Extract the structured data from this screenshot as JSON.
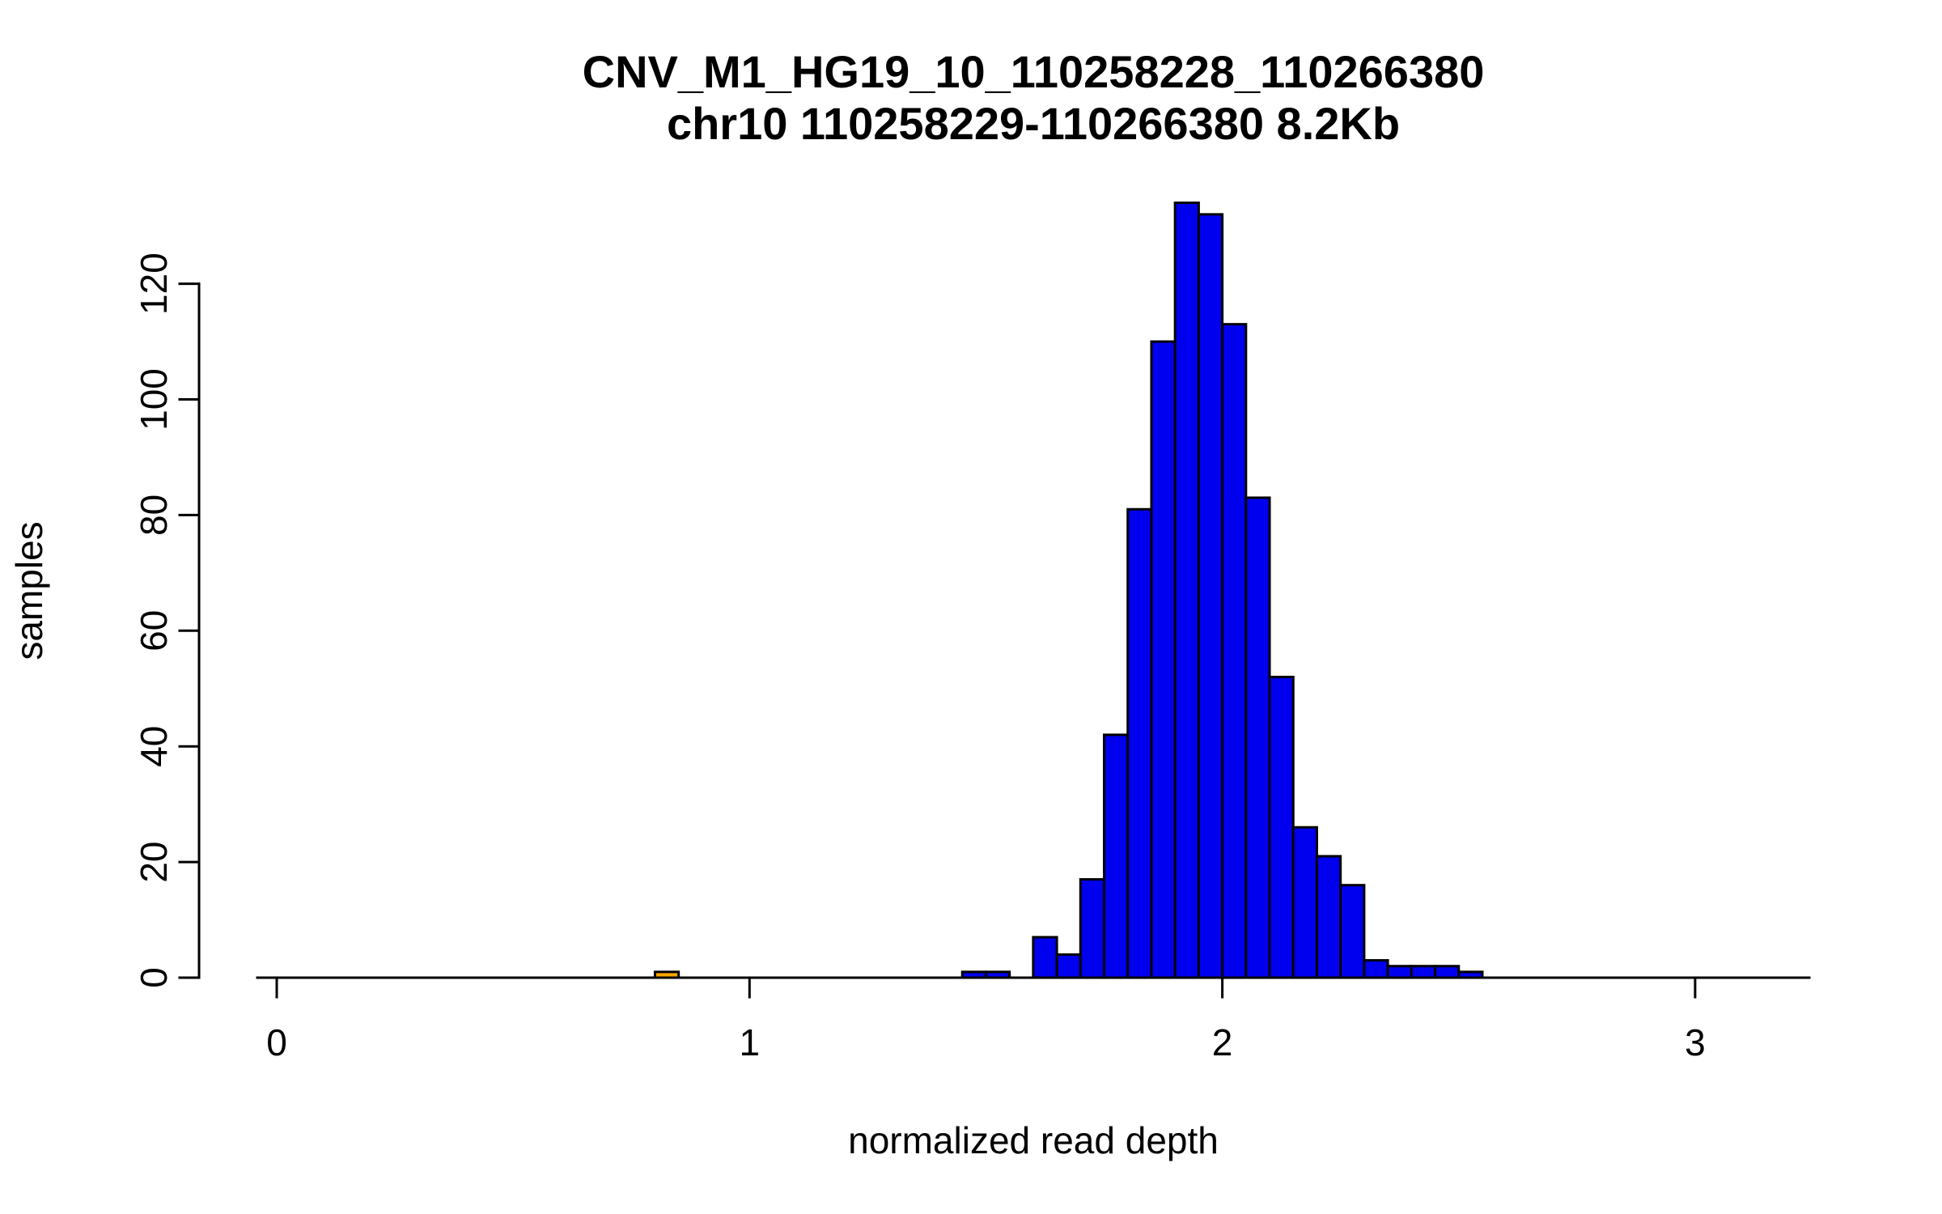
{
  "chart_data": {
    "type": "bar",
    "subtype": "histogram",
    "title": "CNV_M1_HG19_10_110258228_110266380",
    "subtitle": "chr10 110258229-110266380 8.2Kb",
    "xlabel": "normalized read depth",
    "ylabel": "samples",
    "x_ticks": [
      0,
      1,
      2,
      3
    ],
    "y_ticks": [
      0,
      20,
      40,
      60,
      80,
      100,
      120
    ],
    "xlim": [
      -0.04,
      3.24
    ],
    "ylim": [
      0,
      134
    ],
    "bin_width": 0.05,
    "bar_fill": "#0000EE",
    "highlight_fill": "#FFA500",
    "bar_stroke": "#000000",
    "grid": false,
    "legend": "none",
    "bars": [
      {
        "x": 0.8,
        "count": 1,
        "color": "#FFA500"
      },
      {
        "x": 1.45,
        "count": 1,
        "color": "#0000EE"
      },
      {
        "x": 1.5,
        "count": 1,
        "color": "#0000EE"
      },
      {
        "x": 1.6,
        "count": 7,
        "color": "#0000EE"
      },
      {
        "x": 1.65,
        "count": 4,
        "color": "#0000EE"
      },
      {
        "x": 1.7,
        "count": 17,
        "color": "#0000EE"
      },
      {
        "x": 1.75,
        "count": 42,
        "color": "#0000EE"
      },
      {
        "x": 1.8,
        "count": 81,
        "color": "#0000EE"
      },
      {
        "x": 1.85,
        "count": 110,
        "color": "#0000EE"
      },
      {
        "x": 1.9,
        "count": 134,
        "color": "#0000EE"
      },
      {
        "x": 1.95,
        "count": 132,
        "color": "#0000EE"
      },
      {
        "x": 2.0,
        "count": 113,
        "color": "#0000EE"
      },
      {
        "x": 2.05,
        "count": 83,
        "color": "#0000EE"
      },
      {
        "x": 2.1,
        "count": 52,
        "color": "#0000EE"
      },
      {
        "x": 2.15,
        "count": 26,
        "color": "#0000EE"
      },
      {
        "x": 2.2,
        "count": 21,
        "color": "#0000EE"
      },
      {
        "x": 2.25,
        "count": 16,
        "color": "#0000EE"
      },
      {
        "x": 2.3,
        "count": 3,
        "color": "#0000EE"
      },
      {
        "x": 2.35,
        "count": 2,
        "color": "#0000EE"
      },
      {
        "x": 2.4,
        "count": 2,
        "color": "#0000EE"
      },
      {
        "x": 2.45,
        "count": 2,
        "color": "#0000EE"
      },
      {
        "x": 2.5,
        "count": 1,
        "color": "#0000EE"
      }
    ]
  }
}
